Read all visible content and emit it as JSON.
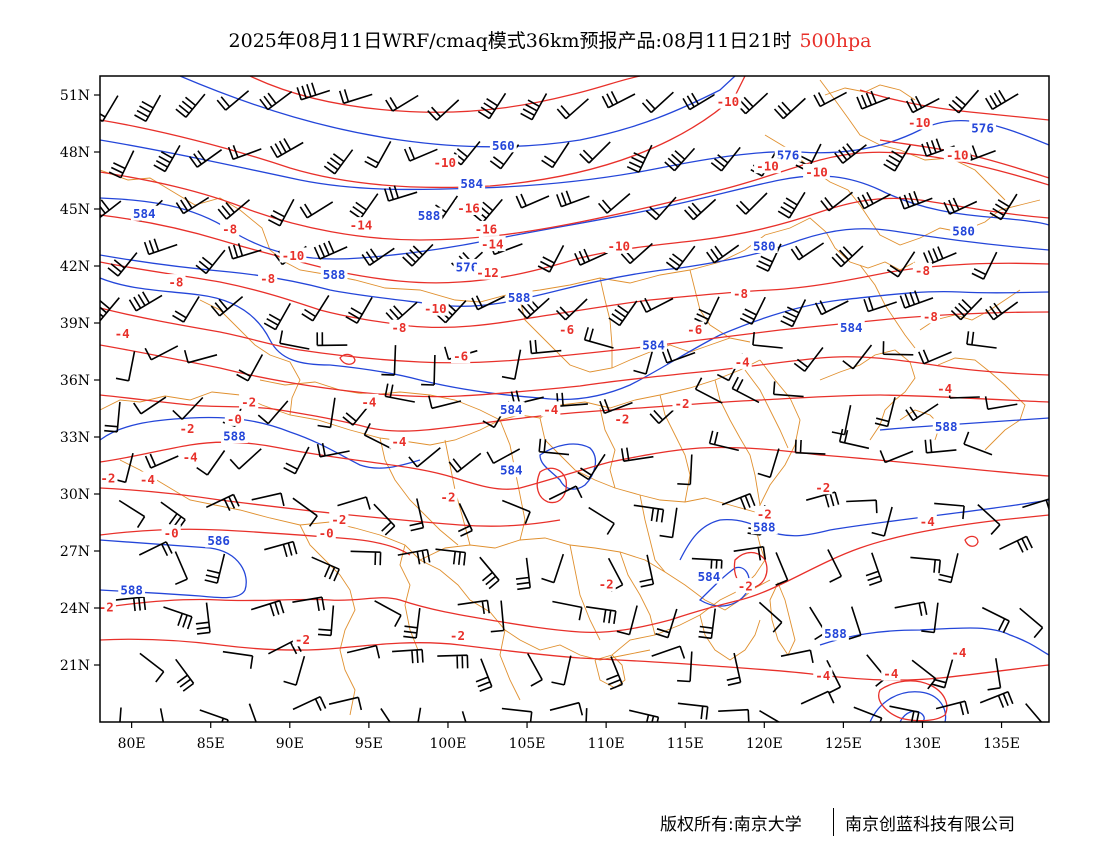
{
  "header": {
    "title": "2025年08月11日WRF/cmaq模式36km预报产品:08月11日21时",
    "level": "500hpa",
    "level_color": "#e8302a"
  },
  "map": {
    "type": "weather-map",
    "projection": "lat-lon",
    "lon_range": [
      78,
      138
    ],
    "lat_range": [
      18,
      52
    ],
    "lon_ticks": [
      {
        "value": 80,
        "label": "80E"
      },
      {
        "value": 85,
        "label": "85E"
      },
      {
        "value": 90,
        "label": "90E"
      },
      {
        "value": 95,
        "label": "95E"
      },
      {
        "value": 100,
        "label": "100E"
      },
      {
        "value": 105,
        "label": "105E"
      },
      {
        "value": 110,
        "label": "110E"
      },
      {
        "value": 115,
        "label": "115E"
      },
      {
        "value": 120,
        "label": "120E"
      },
      {
        "value": 125,
        "label": "125E"
      },
      {
        "value": 130,
        "label": "130E"
      },
      {
        "value": 135,
        "label": "135E"
      }
    ],
    "lat_ticks": [
      {
        "value": 51,
        "label": "51N"
      },
      {
        "value": 48,
        "label": "48N"
      },
      {
        "value": 45,
        "label": "45N"
      },
      {
        "value": 42,
        "label": "42N"
      },
      {
        "value": 39,
        "label": "39N"
      },
      {
        "value": 36,
        "label": "36N"
      },
      {
        "value": 33,
        "label": "33N"
      },
      {
        "value": 30,
        "label": "30N"
      },
      {
        "value": 27,
        "label": "27N"
      },
      {
        "value": 24,
        "label": "24N"
      },
      {
        "value": 21,
        "label": "21N"
      }
    ],
    "colors": {
      "height_contour": "#2446d9",
      "temperature_contour": "#e8302a",
      "boundary": "#e0902f",
      "wind_barb": "#000000"
    },
    "height_labels": [
      {
        "text": "560",
        "lon": 103.5,
        "lat": 48.3
      },
      {
        "text": "576",
        "lon": 121.5,
        "lat": 47.8
      },
      {
        "text": "576",
        "lon": 133.8,
        "lat": 49.2
      },
      {
        "text": "584",
        "lon": 101.5,
        "lat": 46.3
      },
      {
        "text": "584",
        "lon": 80.8,
        "lat": 44.7
      },
      {
        "text": "588",
        "lon": 98.8,
        "lat": 44.6
      },
      {
        "text": "580",
        "lon": 120.0,
        "lat": 43.0
      },
      {
        "text": "580",
        "lon": 132.6,
        "lat": 43.8
      },
      {
        "text": "576",
        "lon": 101.2,
        "lat": 41.9
      },
      {
        "text": "588",
        "lon": 92.8,
        "lat": 41.5
      },
      {
        "text": "588",
        "lon": 104.5,
        "lat": 40.3
      },
      {
        "text": "584",
        "lon": 113.0,
        "lat": 37.8
      },
      {
        "text": "584",
        "lon": 125.5,
        "lat": 38.7
      },
      {
        "text": "584",
        "lon": 104.0,
        "lat": 34.4
      },
      {
        "text": "588",
        "lon": 86.5,
        "lat": 33.0
      },
      {
        "text": "588",
        "lon": 131.5,
        "lat": 33.5
      },
      {
        "text": "584",
        "lon": 104.0,
        "lat": 31.2
      },
      {
        "text": "588",
        "lon": 120.0,
        "lat": 28.2
      },
      {
        "text": "586",
        "lon": 85.5,
        "lat": 27.5
      },
      {
        "text": "584",
        "lon": 116.5,
        "lat": 25.6
      },
      {
        "text": "588",
        "lon": 80.0,
        "lat": 24.9
      },
      {
        "text": "588",
        "lon": 124.5,
        "lat": 22.6
      }
    ],
    "temperature_labels": [
      {
        "text": "-10",
        "lon": 117.7,
        "lat": 50.6
      },
      {
        "text": "-10",
        "lon": 129.8,
        "lat": 49.5
      },
      {
        "text": "-10",
        "lon": 132.2,
        "lat": 47.8
      },
      {
        "text": "-10",
        "lon": 120.2,
        "lat": 47.2
      },
      {
        "text": "-10",
        "lon": 123.3,
        "lat": 46.9
      },
      {
        "text": "-10",
        "lon": 99.8,
        "lat": 47.4
      },
      {
        "text": "-16",
        "lon": 101.3,
        "lat": 45.0
      },
      {
        "text": "-16",
        "lon": 102.4,
        "lat": 43.9
      },
      {
        "text": "-14",
        "lon": 102.8,
        "lat": 43.1
      },
      {
        "text": "-14",
        "lon": 94.5,
        "lat": 44.1
      },
      {
        "text": "-8",
        "lon": 86.2,
        "lat": 43.9
      },
      {
        "text": "-10",
        "lon": 90.2,
        "lat": 42.5
      },
      {
        "text": "-10",
        "lon": 110.8,
        "lat": 43.0
      },
      {
        "text": "-12",
        "lon": 102.5,
        "lat": 41.6
      },
      {
        "text": "-8",
        "lon": 88.6,
        "lat": 41.3
      },
      {
        "text": "-8",
        "lon": 82.8,
        "lat": 41.1
      },
      {
        "text": "-8",
        "lon": 130.0,
        "lat": 41.7
      },
      {
        "text": "-10",
        "lon": 99.2,
        "lat": 39.7
      },
      {
        "text": "-8",
        "lon": 118.5,
        "lat": 40.5
      },
      {
        "text": "-8",
        "lon": 130.5,
        "lat": 39.3
      },
      {
        "text": "-8",
        "lon": 96.9,
        "lat": 38.7
      },
      {
        "text": "-6",
        "lon": 107.5,
        "lat": 38.6
      },
      {
        "text": "-6",
        "lon": 115.6,
        "lat": 38.6
      },
      {
        "text": "-4",
        "lon": 79.4,
        "lat": 38.4
      },
      {
        "text": "-6",
        "lon": 100.8,
        "lat": 37.2
      },
      {
        "text": "-4",
        "lon": 118.6,
        "lat": 36.9
      },
      {
        "text": "-4",
        "lon": 131.4,
        "lat": 35.5
      },
      {
        "text": "-2",
        "lon": 87.4,
        "lat": 34.8
      },
      {
        "text": "-4",
        "lon": 95.0,
        "lat": 34.8
      },
      {
        "text": "-2",
        "lon": 114.8,
        "lat": 34.7
      },
      {
        "text": "-4",
        "lon": 106.5,
        "lat": 34.4
      },
      {
        "text": "-0",
        "lon": 86.5,
        "lat": 33.9
      },
      {
        "text": "-2",
        "lon": 111.0,
        "lat": 33.9
      },
      {
        "text": "-2",
        "lon": 83.5,
        "lat": 33.4
      },
      {
        "text": "-4",
        "lon": 96.9,
        "lat": 32.7
      },
      {
        "text": "-4",
        "lon": 83.7,
        "lat": 31.9
      },
      {
        "text": "-2",
        "lon": 78.5,
        "lat": 30.8
      },
      {
        "text": "-4",
        "lon": 81.0,
        "lat": 30.7
      },
      {
        "text": "-2",
        "lon": 123.7,
        "lat": 30.3
      },
      {
        "text": "-2",
        "lon": 100.0,
        "lat": 29.8
      },
      {
        "text": "-2",
        "lon": 120.0,
        "lat": 28.9
      },
      {
        "text": "-4",
        "lon": 130.3,
        "lat": 28.5
      },
      {
        "text": "-2",
        "lon": 93.1,
        "lat": 28.6
      },
      {
        "text": "-0",
        "lon": 92.3,
        "lat": 27.9
      },
      {
        "text": "-0",
        "lon": 82.5,
        "lat": 27.9
      },
      {
        "text": "-2",
        "lon": 118.8,
        "lat": 25.1
      },
      {
        "text": "-2",
        "lon": 110.0,
        "lat": 25.2
      },
      {
        "text": "-2",
        "lon": 78.4,
        "lat": 24.0
      },
      {
        "text": "-2",
        "lon": 100.6,
        "lat": 22.5
      },
      {
        "text": "-2",
        "lon": 90.8,
        "lat": 22.3
      },
      {
        "text": "-4",
        "lon": 132.3,
        "lat": 21.6
      },
      {
        "text": "-4",
        "lon": 123.7,
        "lat": 20.4
      },
      {
        "text": "-4",
        "lon": 128.0,
        "lat": 20.5
      }
    ]
  },
  "footer": {
    "copyright": "版权所有:南京大学",
    "company": "南京创蓝科技有限公司"
  }
}
